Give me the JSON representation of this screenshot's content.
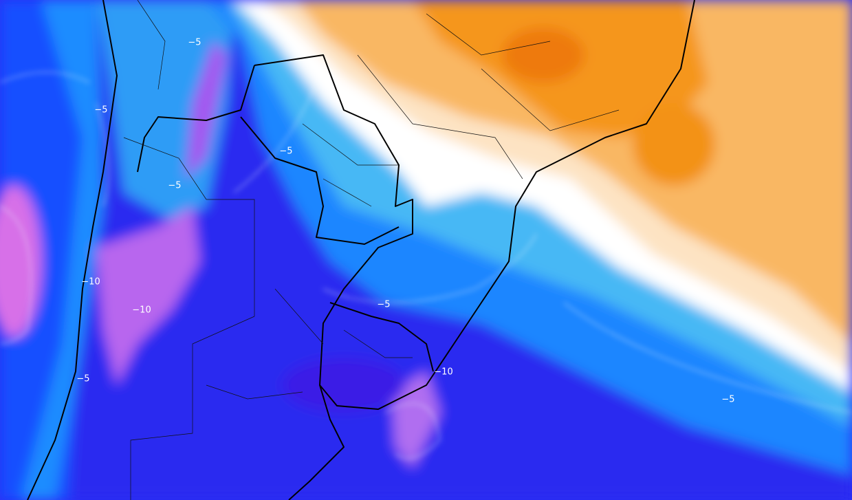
{
  "contour_labels": [
    "−5",
    "−5",
    "−5",
    "−5",
    "−10",
    "−10",
    "−5",
    "−10",
    "−5",
    "−5"
  ]
}
